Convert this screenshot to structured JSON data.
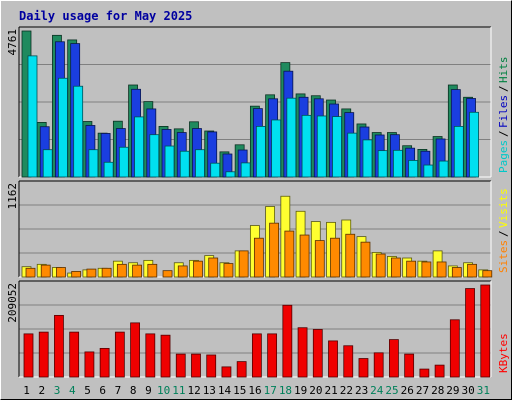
{
  "chart_data": [
    {
      "type": "bar",
      "title": "Daily usage for May 2025",
      "categories": [
        "1",
        "2",
        "3",
        "4",
        "5",
        "6",
        "7",
        "8",
        "9",
        "10",
        "11",
        "12",
        "13",
        "14",
        "15",
        "16",
        "17",
        "18",
        "19",
        "20",
        "21",
        "22",
        "23",
        "24",
        "25",
        "26",
        "27",
        "28",
        "29",
        "30",
        "31"
      ],
      "weekend_days": [
        "3",
        "4",
        "10",
        "11",
        "17",
        "18",
        "24",
        "25",
        "31"
      ],
      "ymax_label": "4761",
      "ylim": [
        0,
        4761
      ],
      "grid": true,
      "side_legend": [
        {
          "name": "Pages",
          "color": "#00c8c8"
        },
        {
          "name": "Files",
          "color": "#0000c0"
        },
        {
          "name": "Hits",
          "color": "#008040"
        }
      ],
      "series": [
        {
          "name": "Hits",
          "color": "#1f8a5e",
          "values": [
            4761,
            1780,
            4620,
            4470,
            1810,
            1430,
            1820,
            3000,
            2460,
            1650,
            1570,
            1800,
            1500,
            820,
            1050,
            2310,
            2680,
            3730,
            2710,
            2650,
            2510,
            2220,
            1730,
            1450,
            1450,
            1020,
            900,
            1320,
            3000,
            2600,
            0
          ]
        },
        {
          "name": "Files",
          "color": "#1a3ee0",
          "values": [
            0,
            1640,
            4410,
            4350,
            1680,
            1420,
            1580,
            2860,
            2220,
            1550,
            1450,
            1580,
            1470,
            750,
            880,
            2230,
            2550,
            3450,
            2600,
            2550,
            2380,
            2100,
            1630,
            1370,
            1380,
            940,
            840,
            1240,
            2850,
            2560,
            0
          ]
        },
        {
          "name": "Pages",
          "color": "#00e0f0",
          "values": [
            3950,
            890,
            3220,
            2960,
            890,
            480,
            970,
            1960,
            1380,
            1010,
            840,
            890,
            450,
            170,
            460,
            1650,
            1860,
            2570,
            2010,
            1990,
            1970,
            1430,
            1210,
            860,
            870,
            540,
            390,
            520,
            1650,
            2110,
            0
          ]
        }
      ]
    },
    {
      "type": "bar",
      "categories": [
        "1",
        "2",
        "3",
        "4",
        "5",
        "6",
        "7",
        "8",
        "9",
        "10",
        "11",
        "12",
        "13",
        "14",
        "15",
        "16",
        "17",
        "18",
        "19",
        "20",
        "21",
        "22",
        "23",
        "24",
        "25",
        "26",
        "27",
        "28",
        "29",
        "30",
        "31"
      ],
      "ymax_label": "1162",
      "ylim": [
        0,
        1162
      ],
      "grid": true,
      "side_legend": [
        {
          "name": "Sites",
          "color": "#ff8000"
        },
        {
          "name": "Visits",
          "color": "#ffff00"
        }
      ],
      "series": [
        {
          "name": "Visits",
          "color": "#ffff30",
          "values": [
            130,
            160,
            120,
            50,
            90,
            110,
            200,
            180,
            210,
            0,
            180,
            210,
            270,
            180,
            330,
            650,
            890,
            1020,
            830,
            700,
            690,
            720,
            510,
            310,
            260,
            240,
            200,
            330,
            140,
            180,
            90
          ]
        },
        {
          "name": "Sites",
          "color": "#ff8a00",
          "values": [
            110,
            150,
            120,
            70,
            100,
            110,
            160,
            150,
            160,
            80,
            140,
            200,
            240,
            170,
            330,
            490,
            680,
            580,
            530,
            460,
            490,
            540,
            440,
            290,
            240,
            200,
            190,
            190,
            120,
            160,
            80
          ]
        }
      ]
    },
    {
      "type": "bar",
      "categories": [
        "1",
        "2",
        "3",
        "4",
        "5",
        "6",
        "7",
        "8",
        "9",
        "10",
        "11",
        "12",
        "13",
        "14",
        "15",
        "16",
        "17",
        "18",
        "19",
        "20",
        "21",
        "22",
        "23",
        "24",
        "25",
        "26",
        "27",
        "28",
        "29",
        "30",
        "31"
      ],
      "ymax_label": "209052",
      "ylim": [
        0,
        209052
      ],
      "grid": true,
      "side_legend": [
        {
          "name": "KBytes",
          "color": "#ff0000"
        }
      ],
      "series": [
        {
          "name": "KBytes",
          "color": "#ef0000",
          "values": [
            98000,
            102000,
            140000,
            102000,
            57000,
            65000,
            102000,
            123000,
            98000,
            95000,
            52000,
            52000,
            50000,
            23000,
            35000,
            98000,
            98000,
            163000,
            112000,
            108000,
            82000,
            71000,
            42000,
            55000,
            85000,
            52000,
            18000,
            27000,
            130000,
            201000,
            209052
          ]
        }
      ]
    }
  ]
}
